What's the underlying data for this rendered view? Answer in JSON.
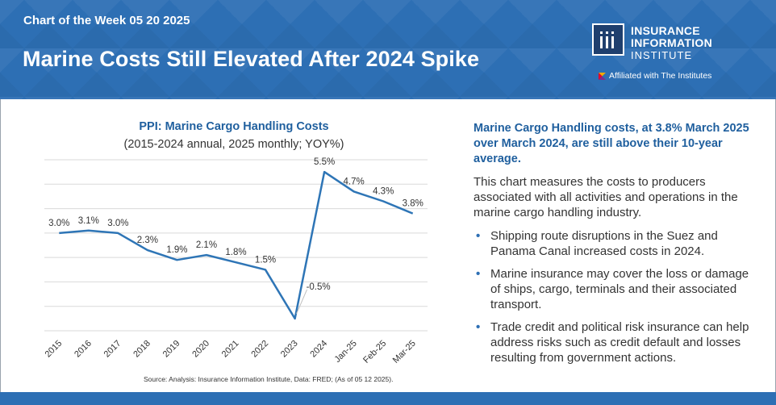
{
  "header": {
    "kicker": "Chart of the Week 05 20 2025",
    "headline": "Marine Costs Still Elevated After 2024 Spike"
  },
  "logo": {
    "line1": "INSURANCE",
    "line2": "INFORMATION",
    "line3": "INSTITUTE",
    "affiliation": "Affiliated with The Institutes"
  },
  "colors": {
    "header_blue": "#2d6fb4",
    "title_blue": "#1f5f9e",
    "line_blue": "#2e75b6",
    "grid": "#d9d9d9"
  },
  "chart_data": {
    "type": "line",
    "title": "PPI: Marine Cargo Handling Costs",
    "subtitle": "(2015-2024 annual, 2025 monthly; YOY%)",
    "categories": [
      "2015",
      "2016",
      "2017",
      "2018",
      "2019",
      "2020",
      "2021",
      "2022",
      "2023",
      "2024",
      "Jan-25",
      "Feb-25",
      "Mar-25"
    ],
    "values": [
      3.0,
      3.1,
      3.0,
      2.3,
      1.9,
      2.1,
      1.8,
      1.5,
      -0.5,
      5.5,
      4.7,
      4.3,
      3.8
    ],
    "data_labels": [
      "3.0%",
      "3.1%",
      "3.0%",
      "2.3%",
      "1.9%",
      "2.1%",
      "1.8%",
      "1.5%",
      "-0.5%",
      "5.5%",
      "4.7%",
      "4.3%",
      "3.8%"
    ],
    "ylim": [
      -1,
      6
    ],
    "grid": true,
    "xlabel": "",
    "ylabel": ""
  },
  "source": "Source: Analysis: Insurance Information Institute, Data: FRED; (As of 05 12 2025).",
  "side": {
    "lead": "Marine Cargo Handling costs, at 3.8% March 2025 over March 2024, are still above their 10-year average.",
    "paragraph": "This chart measures the costs to producers associated with all activities and operations in the marine cargo handling industry.",
    "bullet_symbol": "•",
    "bullets": [
      "Shipping route disruptions in the Suez and Panama Canal increased costs in 2024.",
      "Marine insurance may cover the loss or damage of ships, cargo, terminals and their associated transport.",
      "Trade credit and political risk insurance can help address risks such as credit default and losses resulting from government actions."
    ]
  }
}
